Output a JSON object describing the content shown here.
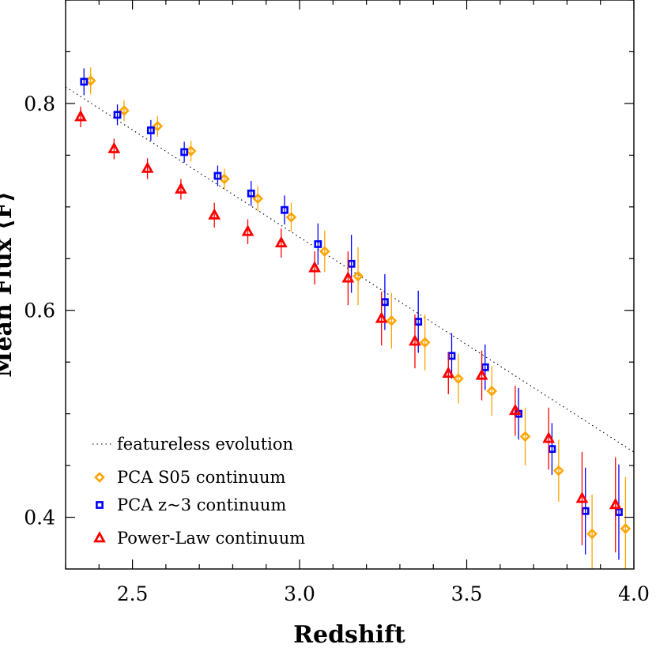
{
  "chart_data": {
    "type": "scatter",
    "xlabel": "Redshift",
    "ylabel": "Mean Flux ⟨F⟩",
    "xlim": [
      2.3,
      4.0
    ],
    "ylim": [
      0.35,
      0.9
    ],
    "xticks": [
      2.5,
      3.0,
      3.5,
      4.0
    ],
    "xtick_labels": [
      "2.5",
      "3.0",
      "3.5",
      "4.0"
    ],
    "yticks": [
      0.4,
      0.6,
      0.8
    ],
    "ytick_labels": [
      "0.4",
      "0.6",
      "0.8"
    ],
    "grid": false,
    "legend_position": "bottom-left",
    "featureless_line": {
      "name": "featureless evolution",
      "style": "dotted",
      "color": "#000000",
      "x": [
        2.3,
        4.0
      ],
      "y": [
        0.816,
        0.463
      ]
    },
    "series": [
      {
        "name": "PCA S05 continuum",
        "marker": "diamond",
        "color": "#FFA500",
        "x": [
          2.375,
          2.475,
          2.575,
          2.675,
          2.775,
          2.875,
          2.975,
          3.075,
          3.175,
          3.275,
          3.375,
          3.475,
          3.575,
          3.675,
          3.775,
          3.875,
          3.975
        ],
        "y": [
          0.822,
          0.793,
          0.778,
          0.754,
          0.727,
          0.708,
          0.69,
          0.657,
          0.633,
          0.59,
          0.569,
          0.534,
          0.522,
          0.478,
          0.445,
          0.384,
          0.389
        ],
        "err": [
          0.013,
          0.01,
          0.01,
          0.01,
          0.01,
          0.012,
          0.014,
          0.02,
          0.028,
          0.027,
          0.027,
          0.024,
          0.024,
          0.028,
          0.03,
          0.038,
          0.05
        ]
      },
      {
        "name": "PCA z~3 continuum",
        "marker": "square",
        "color": "#0000FF",
        "x": [
          2.355,
          2.455,
          2.555,
          2.655,
          2.755,
          2.855,
          2.955,
          3.055,
          3.155,
          3.255,
          3.355,
          3.455,
          3.555,
          3.655,
          3.755,
          3.855,
          3.955
        ],
        "y": [
          0.821,
          0.789,
          0.774,
          0.753,
          0.73,
          0.713,
          0.697,
          0.664,
          0.645,
          0.608,
          0.589,
          0.556,
          0.545,
          0.5,
          0.466,
          0.406,
          0.405
        ],
        "err": [
          0.013,
          0.01,
          0.01,
          0.01,
          0.01,
          0.012,
          0.014,
          0.02,
          0.028,
          0.027,
          0.03,
          0.022,
          0.022,
          0.025,
          0.025,
          0.042,
          0.046
        ]
      },
      {
        "name": "Power-Law continuum",
        "marker": "triangle",
        "color": "#FF0000",
        "x": [
          2.345,
          2.445,
          2.545,
          2.645,
          2.745,
          2.845,
          2.945,
          3.045,
          3.145,
          3.245,
          3.345,
          3.445,
          3.545,
          3.645,
          3.745,
          3.845,
          3.945
        ],
        "y": [
          0.787,
          0.756,
          0.737,
          0.717,
          0.692,
          0.676,
          0.665,
          0.641,
          0.631,
          0.592,
          0.57,
          0.539,
          0.537,
          0.503,
          0.476,
          0.418,
          0.412
        ],
        "err": [
          0.01,
          0.01,
          0.01,
          0.01,
          0.012,
          0.012,
          0.014,
          0.016,
          0.026,
          0.026,
          0.026,
          0.02,
          0.024,
          0.024,
          0.03,
          0.045,
          0.046
        ]
      }
    ]
  }
}
